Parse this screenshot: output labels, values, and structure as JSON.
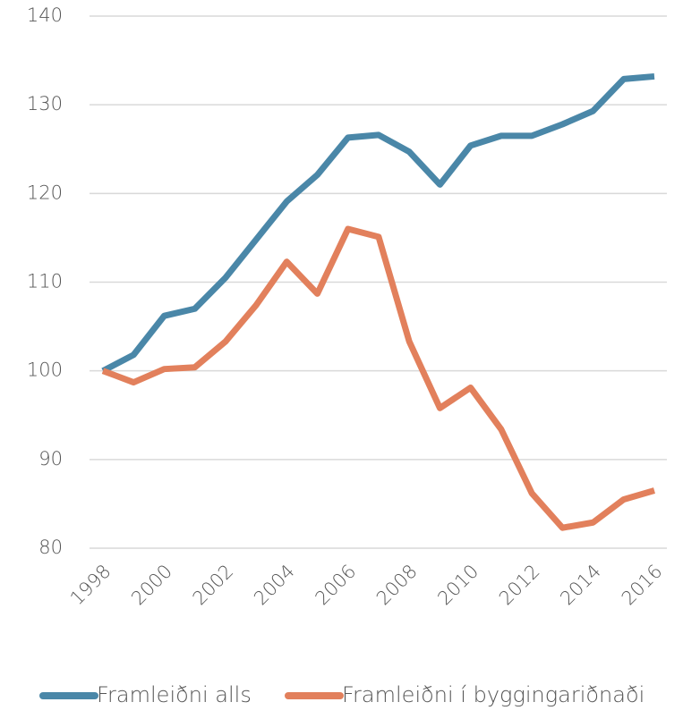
{
  "chart_data": {
    "type": "line",
    "x": [
      1998,
      1999,
      2000,
      2001,
      2002,
      2003,
      2004,
      2005,
      2006,
      2007,
      2008,
      2009,
      2010,
      2011,
      2012,
      2013,
      2014,
      2015,
      2016
    ],
    "series": [
      {
        "name": "Framleiðni alls",
        "color": "#4a87a8",
        "values": [
          100,
          101.8,
          106.2,
          107.0,
          110.5,
          114.8,
          119.1,
          122.1,
          126.3,
          126.6,
          124.7,
          121.0,
          125.4,
          126.5,
          126.5,
          127.8,
          129.3,
          132.9,
          133.2
        ]
      },
      {
        "name": "Framleiðni í byggingariðnaði",
        "color": "#e2805c",
        "values": [
          100,
          98.7,
          100.2,
          100.4,
          103.3,
          107.4,
          112.3,
          108.7,
          116.0,
          115.1,
          103.3,
          95.8,
          98.1,
          93.4,
          86.2,
          82.3,
          82.9,
          85.5,
          86.5
        ]
      }
    ],
    "xlim": [
      1998,
      2016
    ],
    "xticks": [
      1998,
      2000,
      2002,
      2004,
      2006,
      2008,
      2010,
      2012,
      2014,
      2016
    ],
    "ylim": [
      80,
      140
    ],
    "yticks": [
      80,
      90,
      100,
      110,
      120,
      130,
      140
    ],
    "grid": true,
    "legend": "bottom"
  }
}
